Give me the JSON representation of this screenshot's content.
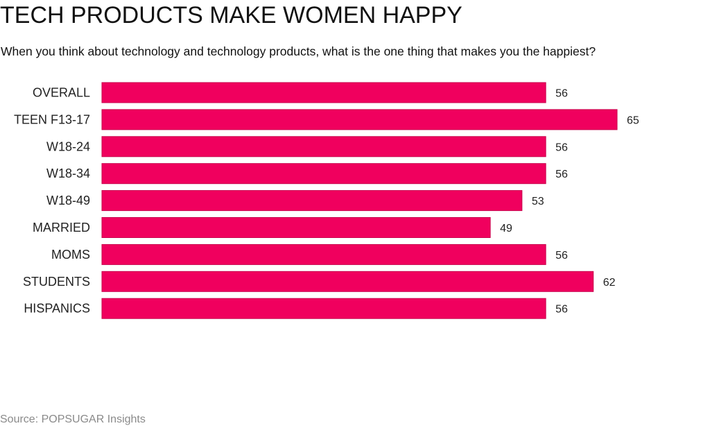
{
  "header": {
    "title": "TECH PRODUCTS MAKE WOMEN HAPPY",
    "subtitle": "When you think about technology and technology products, what is the one thing that makes you the happiest?"
  },
  "footer": {
    "source": "Source: POPSUGAR Insights"
  },
  "colors": {
    "bar": "#f0005e",
    "bar_stroke": "#c8004c",
    "source_text": "#8a8a8a"
  },
  "chart_data": {
    "type": "bar",
    "orientation": "horizontal",
    "title": "TECH PRODUCTS MAKE WOMEN HAPPY",
    "subtitle": "When you think about technology and technology products, what is the one thing that makes you the happiest?",
    "categories": [
      "OVERALL",
      "TEEN F13-17",
      "W18-24",
      "W18-34",
      "W18-49",
      "MARRIED",
      "MOMS",
      "STUDENTS",
      "HISPANICS"
    ],
    "values": [
      56,
      65,
      56,
      56,
      53,
      49,
      56,
      62,
      56
    ],
    "data_labels": [
      "56",
      "65",
      "56",
      "56",
      "53",
      "49",
      "56",
      "62",
      "56"
    ],
    "xlim": [
      0,
      65
    ],
    "grid": false,
    "legend": "none"
  }
}
